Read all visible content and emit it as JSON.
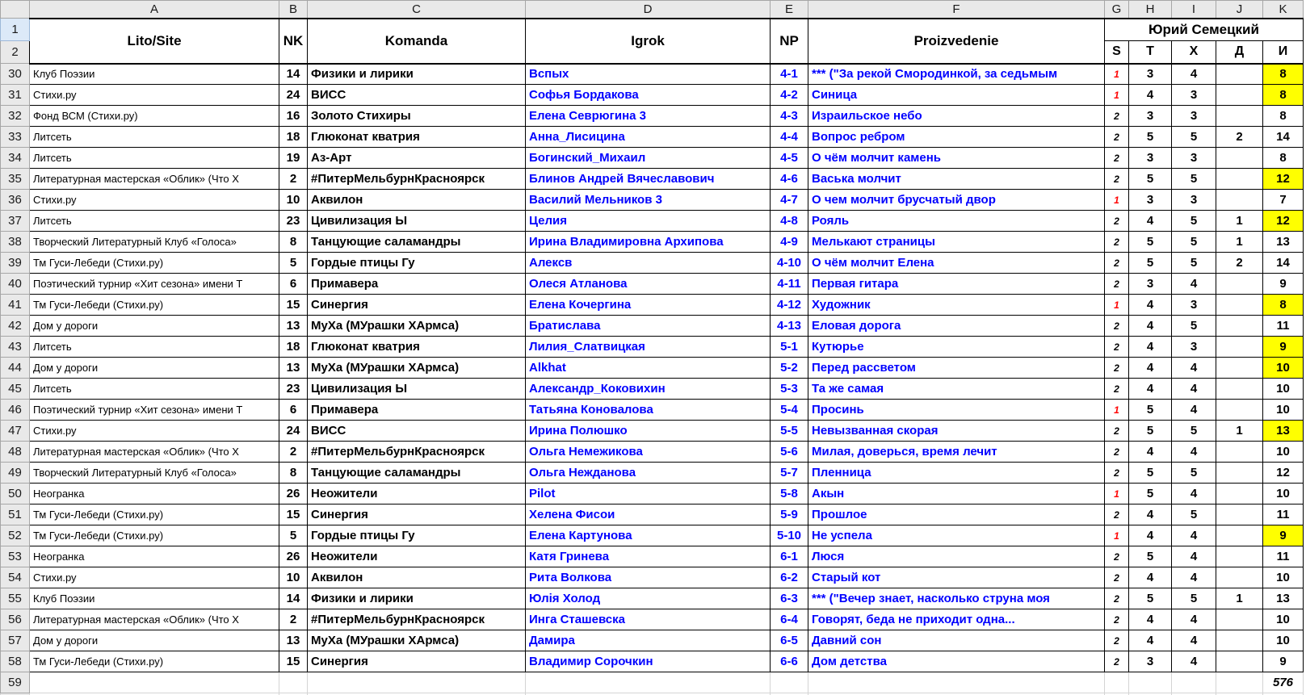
{
  "sheet": {
    "corner_label": "",
    "column_letters": [
      "A",
      "B",
      "C",
      "D",
      "E",
      "F",
      "G",
      "H",
      "I",
      "J",
      "K"
    ],
    "header_row_numbers": {
      "r1": "1",
      "r2": "2"
    },
    "columns": {
      "lito": "Lito/Site",
      "nk": "NK",
      "komanda": "Komanda",
      "igrok": "Igrok",
      "np": "NP",
      "proizvedenie": "Proizvedenie"
    },
    "judge_group_label": "Юрий Семецкий",
    "subcolumns": [
      "S",
      "T",
      "X",
      "Д",
      "И"
    ],
    "colors": {
      "link_blue": "#0000ff",
      "red_mark": "#ff0000",
      "highlight_yellow": "#ffff00",
      "chrome_gray": "#e9e9e9",
      "selected_row_header_blue": "#dce9f8"
    },
    "rows": [
      {
        "n": "30",
        "lito": "Клуб Поэзии",
        "nk": "14",
        "komanda": "Физики и лирики",
        "igrok": "Вспых",
        "np": "4-1",
        "proizv": "*** (\"За рекой Смородинкой, за седьмым",
        "s": "1",
        "s_red": true,
        "t": "3",
        "x": "4",
        "dop": "",
        "itog": "8",
        "itog_y": true
      },
      {
        "n": "31",
        "lito": "Стихи.ру",
        "nk": "24",
        "komanda": "ВИСС",
        "igrok": "Софья Бордакова",
        "np": "4-2",
        "proizv": "Синица",
        "s": "1",
        "s_red": true,
        "t": "4",
        "x": "3",
        "dop": "",
        "itog": "8",
        "itog_y": true
      },
      {
        "n": "32",
        "lito": "Фонд ВСМ (Стихи.ру)",
        "nk": "16",
        "komanda": "Золото Стихиры",
        "igrok": "Елена Севрюгина 3",
        "np": "4-3",
        "proizv": "Израильское небо",
        "s": "2",
        "s_red": false,
        "t": "3",
        "x": "3",
        "dop": "",
        "itog": "8",
        "itog_y": false
      },
      {
        "n": "33",
        "lito": "Литсеть",
        "nk": "18",
        "komanda": "Глюконат кватрия",
        "igrok": "Анна_Лисицина",
        "np": "4-4",
        "proizv": "Вопрос ребром",
        "s": "2",
        "s_red": false,
        "t": "5",
        "x": "5",
        "dop": "2",
        "itog": "14",
        "itog_y": false
      },
      {
        "n": "34",
        "lito": "Литсеть",
        "nk": "19",
        "komanda": "Аз-Арт",
        "igrok": "Богинский_Михаил",
        "np": "4-5",
        "proizv": "О чём молчит камень",
        "s": "2",
        "s_red": false,
        "t": "3",
        "x": "3",
        "dop": "",
        "itog": "8",
        "itog_y": false
      },
      {
        "n": "35",
        "lito": "Литературная мастерская «Облик» (Что Х",
        "nk": "2",
        "komanda": "#ПитерМельбурнКрасноярск",
        "igrok": "Блинов Андрей Вячеславович",
        "np": "4-6",
        "proizv": "Васька молчит",
        "s": "2",
        "s_red": false,
        "t": "5",
        "x": "5",
        "dop": "",
        "itog": "12",
        "itog_y": true
      },
      {
        "n": "36",
        "lito": "Стихи.ру",
        "nk": "10",
        "komanda": "Аквилон",
        "igrok": "Василий Мельников 3",
        "np": "4-7",
        "proizv": "О чем молчит брусчатый двор",
        "s": "1",
        "s_red": true,
        "t": "3",
        "x": "3",
        "dop": "",
        "itog": "7",
        "itog_y": false
      },
      {
        "n": "37",
        "lito": "Литсеть",
        "nk": "23",
        "komanda": "Цивилизация Ы",
        "igrok": "Целия",
        "np": "4-8",
        "proizv": "Рояль",
        "s": "2",
        "s_red": false,
        "t": "4",
        "x": "5",
        "dop": "1",
        "itog": "12",
        "itog_y": true
      },
      {
        "n": "38",
        "lito": "Творческий Литературный Клуб «Голоса»",
        "nk": "8",
        "komanda": "Танцующие саламандры",
        "igrok": "Ирина Владимировна Архипова",
        "np": "4-9",
        "proizv": "Мелькают страницы",
        "s": "2",
        "s_red": false,
        "t": "5",
        "x": "5",
        "dop": "1",
        "itog": "13",
        "itog_y": false
      },
      {
        "n": "39",
        "lito": "Тм Гуси-Лебеди (Стихи.ру)",
        "nk": "5",
        "komanda": "Гордые птицы Гу",
        "igrok": "Алексв",
        "np": "4-10",
        "proizv": "О чём молчит Елена",
        "s": "2",
        "s_red": false,
        "t": "5",
        "x": "5",
        "dop": "2",
        "itog": "14",
        "itog_y": false
      },
      {
        "n": "40",
        "lito": "Поэтический турнир «Хит сезона» имени Т",
        "nk": "6",
        "komanda": "Примавера",
        "igrok": "Олеся Атланова",
        "np": "4-11",
        "proizv": "Первая гитара",
        "s": "2",
        "s_red": false,
        "t": "3",
        "x": "4",
        "dop": "",
        "itog": "9",
        "itog_y": false
      },
      {
        "n": "41",
        "lito": "Тм Гуси-Лебеди (Стихи.ру)",
        "nk": "15",
        "komanda": "Синергия",
        "igrok": "Елена Кочергина",
        "np": "4-12",
        "proizv": "Художник",
        "s": "1",
        "s_red": true,
        "t": "4",
        "x": "3",
        "dop": "",
        "itog": "8",
        "itog_y": true
      },
      {
        "n": "42",
        "lito": "Дом у дороги",
        "nk": "13",
        "komanda": "МуХа (МУрашки ХАрмса)",
        "igrok": "Братислава",
        "np": "4-13",
        "proizv": "Еловая дорога",
        "s": "2",
        "s_red": false,
        "t": "4",
        "x": "5",
        "dop": "",
        "itog": "11",
        "itog_y": false
      },
      {
        "n": "43",
        "lito": "Литсеть",
        "nk": "18",
        "komanda": "Глюконат кватрия",
        "igrok": "Лилия_Слатвицкая",
        "np": "5-1",
        "proizv": "Кутюрье",
        "s": "2",
        "s_red": false,
        "t": "4",
        "x": "3",
        "dop": "",
        "itog": "9",
        "itog_y": true
      },
      {
        "n": "44",
        "lito": "Дом у дороги",
        "nk": "13",
        "komanda": "МуХа (МУрашки ХАрмса)",
        "igrok": "Alkhat",
        "np": "5-2",
        "proizv": "Перед рассветом",
        "s": "2",
        "s_red": false,
        "t": "4",
        "x": "4",
        "dop": "",
        "itog": "10",
        "itog_y": true
      },
      {
        "n": "45",
        "lito": "Литсеть",
        "nk": "23",
        "komanda": "Цивилизация Ы",
        "igrok": "Александр_Коковихин",
        "np": "5-3",
        "proizv": "Та же самая",
        "s": "2",
        "s_red": false,
        "t": "4",
        "x": "4",
        "dop": "",
        "itog": "10",
        "itog_y": false
      },
      {
        "n": "46",
        "lito": "Поэтический турнир «Хит сезона» имени Т",
        "nk": "6",
        "komanda": "Примавера",
        "igrok": "Татьяна Коновалова",
        "np": "5-4",
        "proizv": "Просинь",
        "s": "1",
        "s_red": true,
        "t": "5",
        "x": "4",
        "dop": "",
        "itog": "10",
        "itog_y": false
      },
      {
        "n": "47",
        "lito": "Стихи.ру",
        "nk": "24",
        "komanda": "ВИСС",
        "igrok": "Ирина Полюшко",
        "np": "5-5",
        "proizv": "Невызванная скорая",
        "s": "2",
        "s_red": false,
        "t": "5",
        "x": "5",
        "dop": "1",
        "itog": "13",
        "itog_y": true
      },
      {
        "n": "48",
        "lito": "Литературная мастерская «Облик» (Что Х",
        "nk": "2",
        "komanda": "#ПитерМельбурнКрасноярск",
        "igrok": "Ольга Немежикова",
        "np": "5-6",
        "proizv": "Милая, доверься, время лечит",
        "s": "2",
        "s_red": false,
        "t": "4",
        "x": "4",
        "dop": "",
        "itog": "10",
        "itog_y": false
      },
      {
        "n": "49",
        "lito": "Творческий Литературный Клуб «Голоса»",
        "nk": "8",
        "komanda": "Танцующие саламандры",
        "igrok": "Ольга Нежданова",
        "np": "5-7",
        "proizv": "Пленница",
        "s": "2",
        "s_red": false,
        "t": "5",
        "x": "5",
        "dop": "",
        "itog": "12",
        "itog_y": false
      },
      {
        "n": "50",
        "lito": "Неогранка",
        "nk": "26",
        "komanda": "Неожители",
        "igrok": "Pilot",
        "np": "5-8",
        "proizv": "Акын",
        "s": "1",
        "s_red": true,
        "t": "5",
        "x": "4",
        "dop": "",
        "itog": "10",
        "itog_y": false
      },
      {
        "n": "51",
        "lito": "Тм Гуси-Лебеди (Стихи.ру)",
        "nk": "15",
        "komanda": "Синергия",
        "igrok": "Хелена Фисои",
        "np": "5-9",
        "proizv": "Прошлое",
        "s": "2",
        "s_red": false,
        "t": "4",
        "x": "5",
        "dop": "",
        "itog": "11",
        "itog_y": false
      },
      {
        "n": "52",
        "lito": "Тм Гуси-Лебеди (Стихи.ру)",
        "nk": "5",
        "komanda": "Гордые птицы Гу",
        "igrok": "Елена Картунова",
        "np": "5-10",
        "proizv": "Не успела",
        "s": "1",
        "s_red": true,
        "t": "4",
        "x": "4",
        "dop": "",
        "itog": "9",
        "itog_y": true
      },
      {
        "n": "53",
        "lito": "Неогранка",
        "nk": "26",
        "komanda": "Неожители",
        "igrok": "Катя Гринева",
        "np": "6-1",
        "proizv": "Люся",
        "s": "2",
        "s_red": false,
        "t": "5",
        "x": "4",
        "dop": "",
        "itog": "11",
        "itog_y": false
      },
      {
        "n": "54",
        "lito": "Стихи.ру",
        "nk": "10",
        "komanda": "Аквилон",
        "igrok": "Рита Волкова",
        "np": "6-2",
        "proizv": "Старый кот",
        "s": "2",
        "s_red": false,
        "t": "4",
        "x": "4",
        "dop": "",
        "itog": "10",
        "itog_y": false
      },
      {
        "n": "55",
        "lito": "Клуб Поэзии",
        "nk": "14",
        "komanda": "Физики и лирики",
        "igrok": "Юлія Холод",
        "np": "6-3",
        "proizv": "*** (\"Вечер знает, насколько струна моя",
        "s": "2",
        "s_red": false,
        "t": "5",
        "x": "5",
        "dop": "1",
        "itog": "13",
        "itog_y": false
      },
      {
        "n": "56",
        "lito": "Литературная мастерская «Облик» (Что Х",
        "nk": "2",
        "komanda": "#ПитерМельбурнКрасноярск",
        "igrok": "Инга Сташевска",
        "np": "6-4",
        "proizv": "Говорят, беда не приходит одна...",
        "s": "2",
        "s_red": false,
        "t": "4",
        "x": "4",
        "dop": "",
        "itog": "10",
        "itog_y": false
      },
      {
        "n": "57",
        "lito": "Дом у дороги",
        "nk": "13",
        "komanda": "МуХа (МУрашки ХАрмса)",
        "igrok": "Дамира",
        "np": "6-5",
        "proizv": "Давний сон",
        "s": "2",
        "s_red": false,
        "t": "4",
        "x": "4",
        "dop": "",
        "itog": "10",
        "itog_y": false
      },
      {
        "n": "58",
        "lito": "Тм Гуси-Лебеди (Стихи.ру)",
        "nk": "15",
        "komanda": "Синергия",
        "igrok": "Владимир Сорочкин",
        "np": "6-6",
        "proizv": "Дом детства",
        "s": "2",
        "s_red": false,
        "t": "3",
        "x": "4",
        "dop": "",
        "itog": "9",
        "itog_y": false
      }
    ],
    "footer_row": {
      "n": "59",
      "total": "576"
    }
  }
}
